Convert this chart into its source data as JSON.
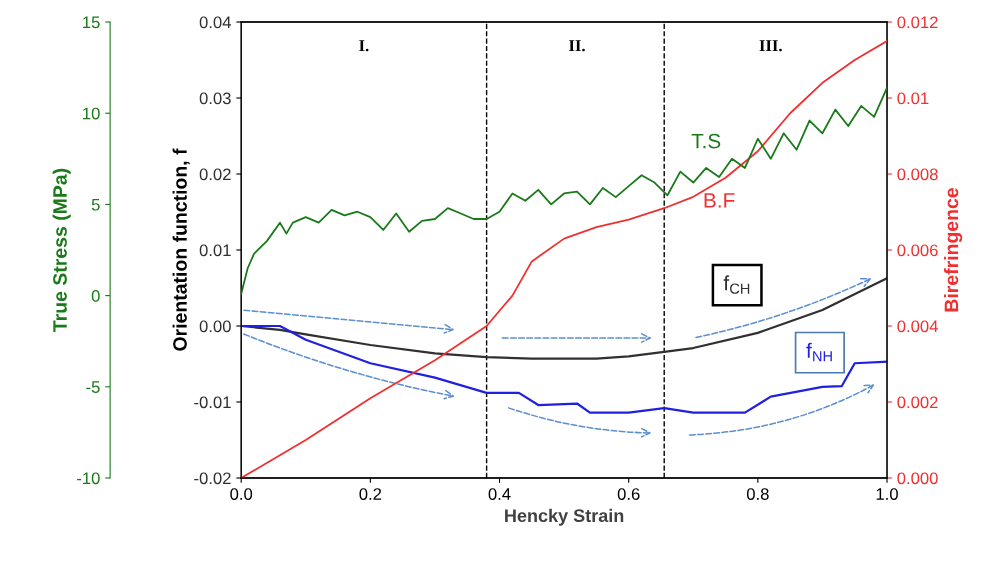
{
  "chart_data": {
    "type": "line",
    "xlabel": "Hencky Strain",
    "ylabel": "Orientation function, f",
    "y2label": "Birefringence",
    "y3label": "True Stress (MPa)",
    "xlim": [
      0,
      1.0
    ],
    "xticks": [
      {
        "value": 0,
        "label": "0.0"
      },
      0.2,
      0.4,
      0.6,
      0.8,
      {
        "value": 1.0,
        "label": "1.0"
      }
    ],
    "ylim": [
      -0.02,
      0.04
    ],
    "yticks": [
      -0.02,
      -0.01,
      {
        "value": 0,
        "label": "0.00"
      },
      0.01,
      0.02,
      0.03,
      0.04
    ],
    "y2lim": [
      0,
      0.012
    ],
    "y2ticks": [
      {
        "value": 0,
        "label": "0.000"
      },
      0.002,
      0.004,
      0.006,
      0.008,
      0.01,
      0.012
    ],
    "y3lim": [
      -10,
      15
    ],
    "y3ticks": [
      -10,
      -5,
      0,
      5,
      10,
      15
    ],
    "grid": false,
    "legend": false,
    "line_style": "solid",
    "series": [
      {
        "name": "f$_{CH}$",
        "color": "#303030",
        "x": [
          0,
          0.06,
          0.1,
          0.2,
          0.3,
          0.38,
          0.45,
          0.55,
          0.6,
          0.655,
          0.7,
          0.8,
          0.9,
          1.0
        ],
        "values": [
          0,
          -0.0005,
          -0.0011,
          -0.0025,
          -0.0036,
          -0.0041,
          -0.0043,
          -0.0043,
          -0.004,
          -0.0034,
          -0.0029,
          -0.0009,
          0.0021,
          0.0063
        ]
      },
      {
        "name": "f$_{NH}$",
        "color": "#2020e0",
        "x": [
          0,
          0.06,
          0.1,
          0.2,
          0.3,
          0.38,
          0.43,
          0.46,
          0.52,
          0.54,
          0.6,
          0.655,
          0.7,
          0.78,
          0.82,
          0.9,
          0.93,
          0.95,
          1.0
        ],
        "values": [
          0,
          0,
          -0.0018,
          -0.0049,
          -0.0068,
          -0.0088,
          -0.0088,
          -0.0104,
          -0.0102,
          -0.0114,
          -0.0114,
          -0.0108,
          -0.0114,
          -0.0114,
          -0.0093,
          -0.008,
          -0.0079,
          -0.0049,
          -0.0047
        ]
      },
      {
        "name": "B.F",
        "color": "#f03030",
        "axis": "y2",
        "x": [
          0,
          0.1,
          0.2,
          0.3,
          0.38,
          0.42,
          0.45,
          0.5,
          0.55,
          0.6,
          0.655,
          0.7,
          0.75,
          0.8,
          0.85,
          0.9,
          0.95,
          1.0
        ],
        "values": [
          0,
          0.001,
          0.0021,
          0.0031,
          0.004,
          0.0048,
          0.0057,
          0.0063,
          0.0066,
          0.0068,
          0.0071,
          0.0074,
          0.0079,
          0.0086,
          0.0096,
          0.0104,
          0.011,
          0.0115
        ]
      },
      {
        "name": "T.S",
        "color": "#1a7a1a",
        "axis": "y3",
        "x": [
          0,
          0.01,
          0.02,
          0.04,
          0.06,
          0.07,
          0.08,
          0.1,
          0.12,
          0.14,
          0.16,
          0.18,
          0.2,
          0.22,
          0.24,
          0.26,
          0.28,
          0.3,
          0.32,
          0.34,
          0.36,
          0.38,
          0.4,
          0.42,
          0.44,
          0.46,
          0.48,
          0.5,
          0.52,
          0.54,
          0.56,
          0.58,
          0.6,
          0.62,
          0.64,
          0.66,
          0.68,
          0.7,
          0.72,
          0.74,
          0.76,
          0.78,
          0.8,
          0.82,
          0.84,
          0.86,
          0.88,
          0.9,
          0.92,
          0.94,
          0.96,
          0.98,
          1.0
        ],
        "values": [
          0.1,
          1.5,
          2.3,
          3.0,
          4.0,
          3.4,
          4.0,
          4.3,
          4.0,
          4.7,
          4.4,
          4.6,
          4.3,
          3.6,
          4.5,
          3.5,
          4.1,
          4.2,
          4.8,
          4.5,
          4.2,
          4.2,
          4.6,
          5.6,
          5.2,
          5.8,
          5.0,
          5.6,
          5.7,
          5.0,
          5.9,
          5.4,
          6.0,
          6.6,
          6.2,
          5.5,
          6.8,
          6.2,
          7.0,
          6.5,
          7.5,
          7.0,
          8.6,
          7.5,
          8.9,
          8.0,
          9.6,
          8.9,
          10.2,
          9.3,
          10.4,
          9.8,
          11.4
        ]
      }
    ],
    "ref_lines": [
      {
        "axis": "x",
        "value": 0.38,
        "color": "#000000",
        "line_style": "dashed"
      },
      {
        "axis": "x",
        "value": 0.655,
        "color": "#000000",
        "line_style": "dashed"
      }
    ],
    "annotations": [
      "I.",
      "II.",
      "III."
    ]
  }
}
